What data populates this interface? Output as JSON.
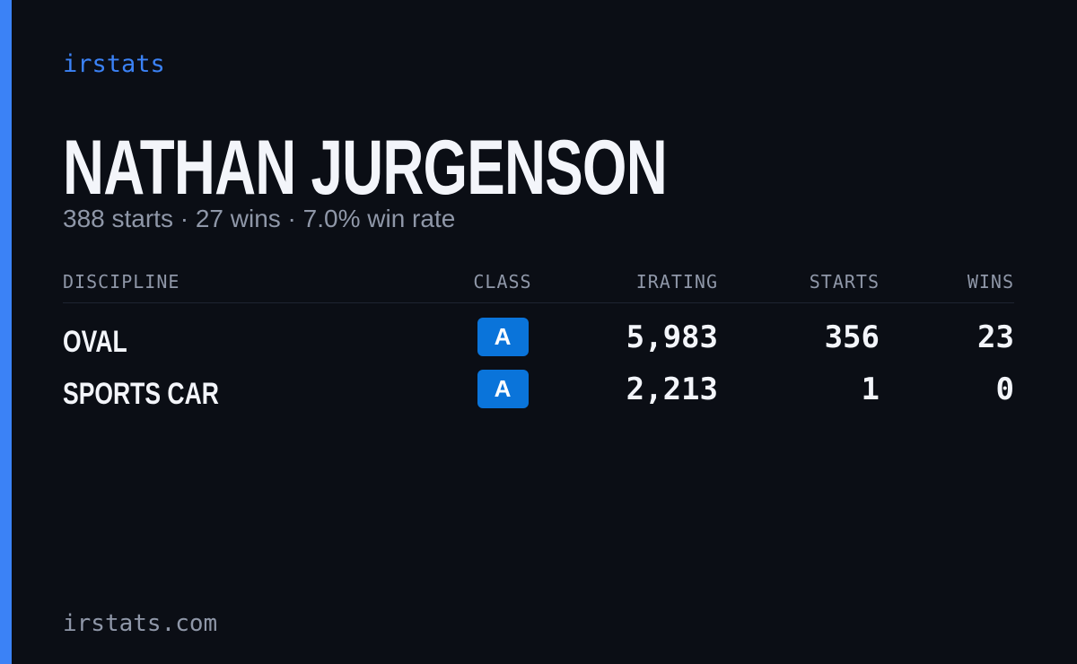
{
  "header": {
    "brand": "irstats",
    "title": "NATHAN JURGENSON",
    "subtitle": "388 starts · 27 wins · 7.0% win rate"
  },
  "table": {
    "columns": [
      "DISCIPLINE",
      "CLASS",
      "IRATING",
      "STARTS",
      "WINS"
    ],
    "rows": [
      [
        "OVAL",
        "A",
        "5,983",
        "356",
        "23"
      ],
      [
        "SPORTS CAR",
        "A",
        "2,213",
        "1",
        "0"
      ]
    ]
  },
  "footer": {
    "url": "irstats.com"
  }
}
